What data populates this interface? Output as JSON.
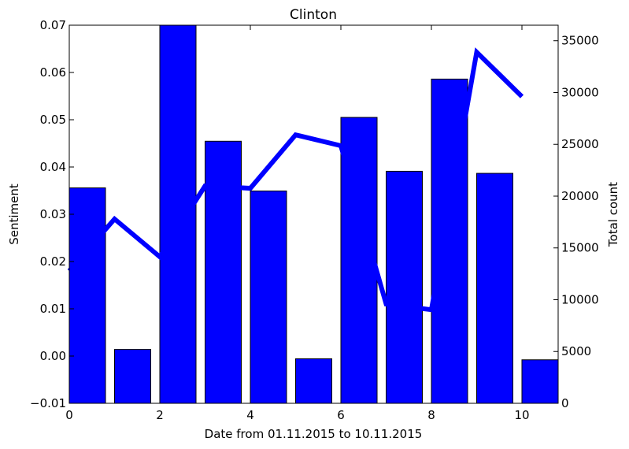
{
  "chart_data": {
    "type": "bar+line",
    "title": "Clinton",
    "xlabel": "Date from 01.11.2015 to 10.11.2015",
    "ylabel_left": "Sentiment",
    "ylabel_right": "Total count",
    "xlim": [
      0,
      10.8
    ],
    "ylim_left": [
      -0.01,
      0.07
    ],
    "ylim_right": [
      0,
      36500
    ],
    "x_ticks": [
      0,
      2,
      4,
      6,
      8,
      10
    ],
    "y_left_ticks": [
      "−0.01",
      "0.00",
      "0.01",
      "0.02",
      "0.03",
      "0.04",
      "0.05",
      "0.06",
      "0.07"
    ],
    "y_right_ticks": [
      "0",
      "5000",
      "10000",
      "15000",
      "20000",
      "25000",
      "30000",
      "35000"
    ],
    "colors": {
      "bars": "#0000ff",
      "line": "#0000ff"
    },
    "bars": {
      "name": "Total count",
      "axis": "right",
      "x": [
        0,
        1,
        2,
        3,
        4,
        5,
        6,
        7,
        8,
        9,
        10
      ],
      "width": 0.8,
      "values": [
        20800,
        5200,
        36500,
        25300,
        20500,
        4300,
        27600,
        22400,
        31300,
        22200,
        4200
      ]
    },
    "line": {
      "name": "Sentiment",
      "axis": "left",
      "x": [
        0,
        1,
        2,
        3,
        4,
        5,
        6,
        7,
        8,
        9,
        10
      ],
      "values": [
        0.018,
        0.029,
        0.021,
        0.036,
        0.0355,
        0.0468,
        0.0445,
        0.011,
        0.0098,
        0.0643,
        0.0549
      ]
    }
  }
}
